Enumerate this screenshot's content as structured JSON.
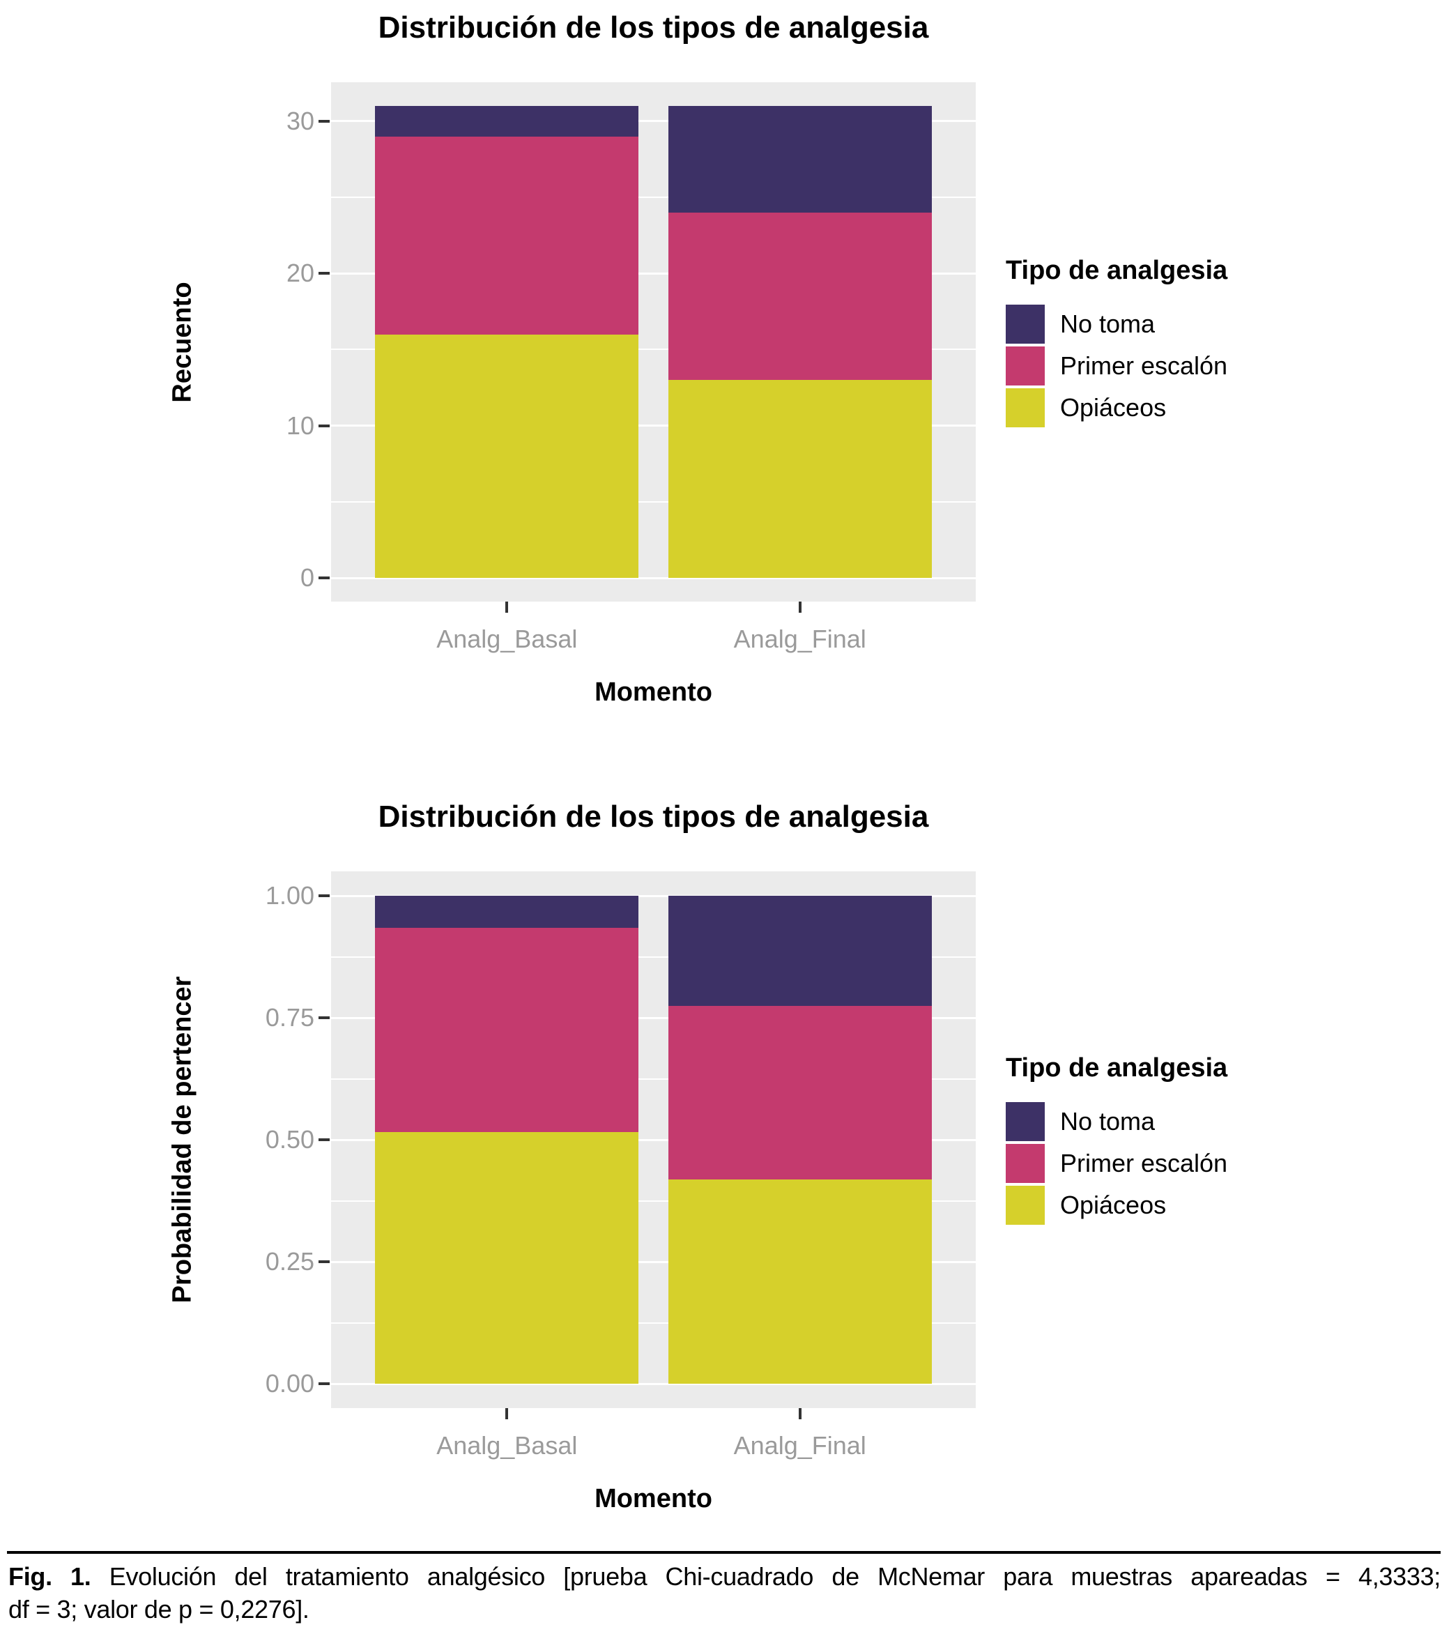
{
  "colors": {
    "no_toma": "#3D3166",
    "primer_escalon": "#C43A6E",
    "opiaceos": "#D6D02B",
    "panel_bg": "#EBEBEB",
    "gridline": "#FFFFFF",
    "tick_text": "#9A9A9A",
    "axis_tick": "#333333"
  },
  "chart_data": [
    {
      "type": "bar",
      "subtype": "stacked",
      "title": "Distribución de los tipos de analgesia",
      "xlabel": "Momento",
      "ylabel": "Recuento",
      "categories": [
        "Analg_Basal",
        "Analg_Final"
      ],
      "series": [
        {
          "name": "Opiáceos",
          "color_key": "opiaceos",
          "values": [
            16,
            13
          ]
        },
        {
          "name": "Primer escalón",
          "color_key": "primer_escalon",
          "values": [
            13,
            11
          ]
        },
        {
          "name": "No toma",
          "color_key": "no_toma",
          "values": [
            2,
            7
          ]
        }
      ],
      "totals": [
        31,
        31
      ],
      "ylim": [
        0,
        31
      ],
      "yticks": [
        0,
        10,
        20,
        30
      ],
      "ytick_labels": [
        "0",
        "10",
        "20",
        "30"
      ],
      "yticks_minor": [
        5,
        15,
        25
      ],
      "grid": "on",
      "legend_position": "right",
      "legend": {
        "title": "Tipo de analgesia",
        "items": [
          {
            "label": "No toma",
            "color_key": "no_toma"
          },
          {
            "label": "Primer escalón",
            "color_key": "primer_escalon"
          },
          {
            "label": "Opiáceos",
            "color_key": "opiaceos"
          }
        ]
      }
    },
    {
      "type": "bar",
      "subtype": "stacked",
      "title": "Distribución de los tipos de analgesia",
      "xlabel": "Momento",
      "ylabel": "Probabilidad de pertencer",
      "categories": [
        "Analg_Basal",
        "Analg_Final"
      ],
      "series": [
        {
          "name": "Opiáceos",
          "color_key": "opiaceos",
          "values": [
            0.516,
            0.419
          ]
        },
        {
          "name": "Primer escalón",
          "color_key": "primer_escalon",
          "values": [
            0.419,
            0.355
          ]
        },
        {
          "name": "No toma",
          "color_key": "no_toma",
          "values": [
            0.065,
            0.226
          ]
        }
      ],
      "totals": [
        1.0,
        1.0
      ],
      "ylim": [
        0,
        1
      ],
      "yticks": [
        0,
        0.25,
        0.5,
        0.75,
        1
      ],
      "ytick_labels": [
        "0.00",
        "0.25",
        "0.50",
        "0.75",
        "1.00"
      ],
      "yticks_minor": [
        0.125,
        0.375,
        0.625,
        0.875
      ],
      "grid": "on",
      "legend_position": "right",
      "legend": {
        "title": "Tipo de analgesia",
        "items": [
          {
            "label": "No toma",
            "color_key": "no_toma"
          },
          {
            "label": "Primer escalón",
            "color_key": "primer_escalon"
          },
          {
            "label": "Opiáceos",
            "color_key": "opiaceos"
          }
        ]
      }
    }
  ],
  "caption": {
    "prefix": "Fig. 1.",
    "line1": "Evolución del tratamiento analgésico [prueba Chi-cuadrado de McNemar para muestras apareadas = 4,3333;",
    "line2": "df = 3; valor de p = 0,2276]."
  }
}
